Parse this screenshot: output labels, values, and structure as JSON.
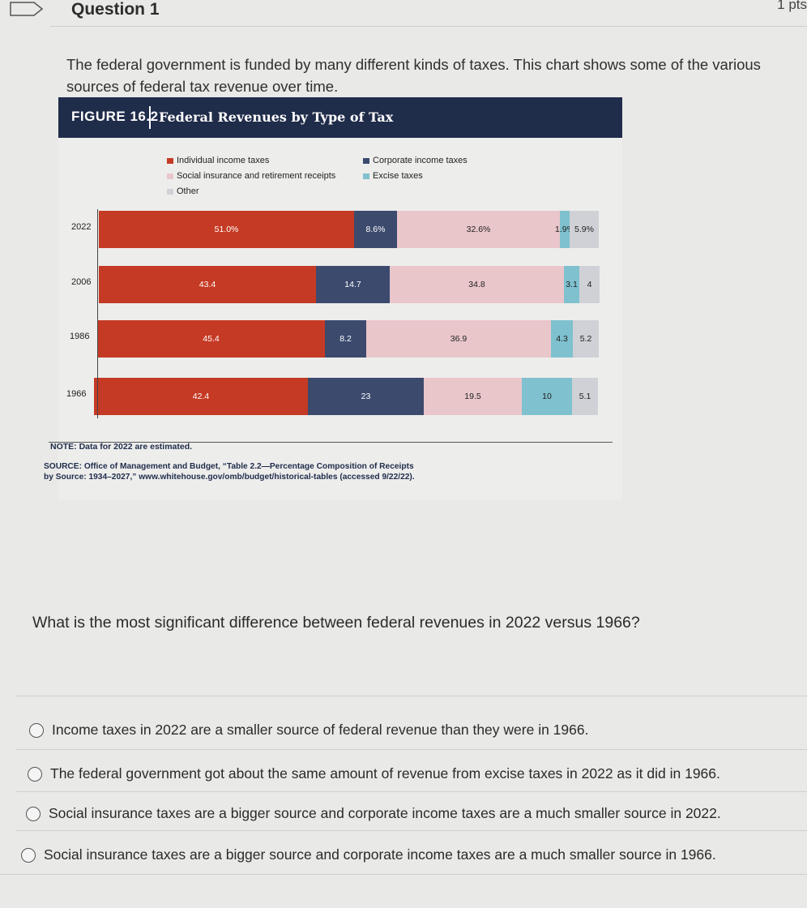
{
  "header": {
    "title": "Question 1",
    "points": "1 pts"
  },
  "intro": "The federal government is funded by many different kinds of taxes. This chart shows some of the various sources of federal tax revenue over time.",
  "figure": {
    "number": "FIGURE 16.2",
    "title": "Federal Revenues by Type of Tax",
    "note": "NOTE: Data for 2022 are estimated.",
    "source_label": "SOURCE:",
    "source_text": "Office of Management and Budget, “Table 2.2—Percentage Composition of Receipts",
    "source_text2": "by Source: 1934–2027,” www.whitehouse.gov/omb/budget/historical-tables (accessed 9/22/22)."
  },
  "chart_data": {
    "type": "bar",
    "orientation": "horizontal-stacked-100",
    "categories": [
      "2022",
      "2006",
      "1986",
      "1966"
    ],
    "series": [
      {
        "name": "Individual income taxes",
        "color": "#c53a24",
        "values": [
          51.0,
          43.4,
          45.4,
          42.4
        ],
        "labels": [
          "51.0%",
          "43.4",
          "45.4",
          "42.4"
        ]
      },
      {
        "name": "Corporate income taxes",
        "color": "#3c4a6e",
        "values": [
          8.6,
          14.7,
          8.2,
          23
        ],
        "labels": [
          "8.6%",
          "14.7",
          "8.2",
          "23"
        ]
      },
      {
        "name": "Social insurance and retirement receipts",
        "color": "#e9c6ca",
        "values": [
          32.6,
          34.8,
          36.9,
          19.5
        ],
        "labels": [
          "32.6%",
          "34.8",
          "36.9",
          "19.5"
        ]
      },
      {
        "name": "Excise taxes",
        "color": "#7fc1cf",
        "values": [
          1.9,
          3.1,
          4.3,
          10
        ],
        "labels": [
          "1.9%",
          "3.1",
          "4.3",
          "10"
        ]
      },
      {
        "name": "Other",
        "color": "#cfd1d6",
        "values": [
          5.9,
          4,
          5.2,
          5.1
        ],
        "labels": [
          "5.9%",
          "4",
          "5.2",
          "5.1"
        ]
      }
    ],
    "legend_position": "top"
  },
  "question": "What is the most signiﬁcant difference between federal revenues in 2022 versus 1966?",
  "options": [
    "Income taxes in 2022 are a smaller source of federal revenue than they were in 1966.",
    "The federal government got about the same amount of revenue from excise taxes in 2022 as it did in 1966.",
    "Social insurance taxes are a bigger source and corporate income taxes are a much smaller source in 2022.",
    "Social insurance taxes are a bigger source and corporate income taxes are a much smaller source in 1966."
  ]
}
